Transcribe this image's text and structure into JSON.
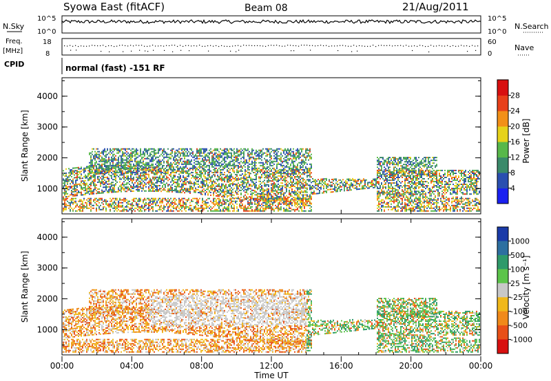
{
  "header": {
    "station": "Syowa East (fitACF)",
    "beam": "Beam 08",
    "date": "21/Aug/2011"
  },
  "top_panels": {
    "nsky_label": "N.Sky",
    "nsearch_label": "N.Search",
    "count_ticks_left": [
      "10^5",
      "10^0"
    ],
    "count_ticks_right": [
      "10^5",
      "10^0"
    ],
    "freq_label_1": "Freq.",
    "freq_label_2": "[MHz]",
    "freq_ticks": [
      "18",
      "8"
    ],
    "nave_label": "Nave",
    "nave_ticks": [
      "60",
      "0"
    ],
    "cpid_label": "CPID",
    "cpid_text": "normal (fast) -151 RF"
  },
  "chart_data": [
    {
      "type": "heatmap",
      "name": "power",
      "xlabel": "",
      "ylabel": "Slant Range [km]",
      "y_ticks": [
        "1000",
        "2000",
        "3000",
        "4000"
      ],
      "ylim": [
        180,
        4600
      ],
      "colorbar_label": "Power [dB]",
      "colorbar_ticks": [
        "4",
        "8",
        "12",
        "16",
        "20",
        "24",
        "28"
      ],
      "colorbar_colors": [
        "#1a20f0",
        "#2a4fb0",
        "#3a8a6a",
        "#58b84a",
        "#e6d21a",
        "#f29018",
        "#e8401a",
        "#d81010"
      ]
    },
    {
      "type": "heatmap",
      "name": "velocity",
      "xlabel": "Time UT",
      "ylabel": "Slant Range [km]",
      "x_ticks": [
        "00:00",
        "04:00",
        "08:00",
        "12:00",
        "16:00",
        "20:00",
        "00:00"
      ],
      "y_ticks": [
        "1000",
        "2000",
        "3000",
        "4000"
      ],
      "ylim": [
        180,
        4600
      ],
      "colorbar_label": "Velocity [m s⁻¹]",
      "colorbar_ticks": [
        "1000",
        "500",
        "100",
        "25",
        "-25",
        "-100",
        "-500",
        "-1000"
      ],
      "colorbar_colors": [
        "#1a3aa8",
        "#2d6fa0",
        "#2e9a6a",
        "#5cc44a",
        "#c8c8c8",
        "#f0b81a",
        "#f08a1a",
        "#e85018",
        "#d81010"
      ]
    }
  ]
}
